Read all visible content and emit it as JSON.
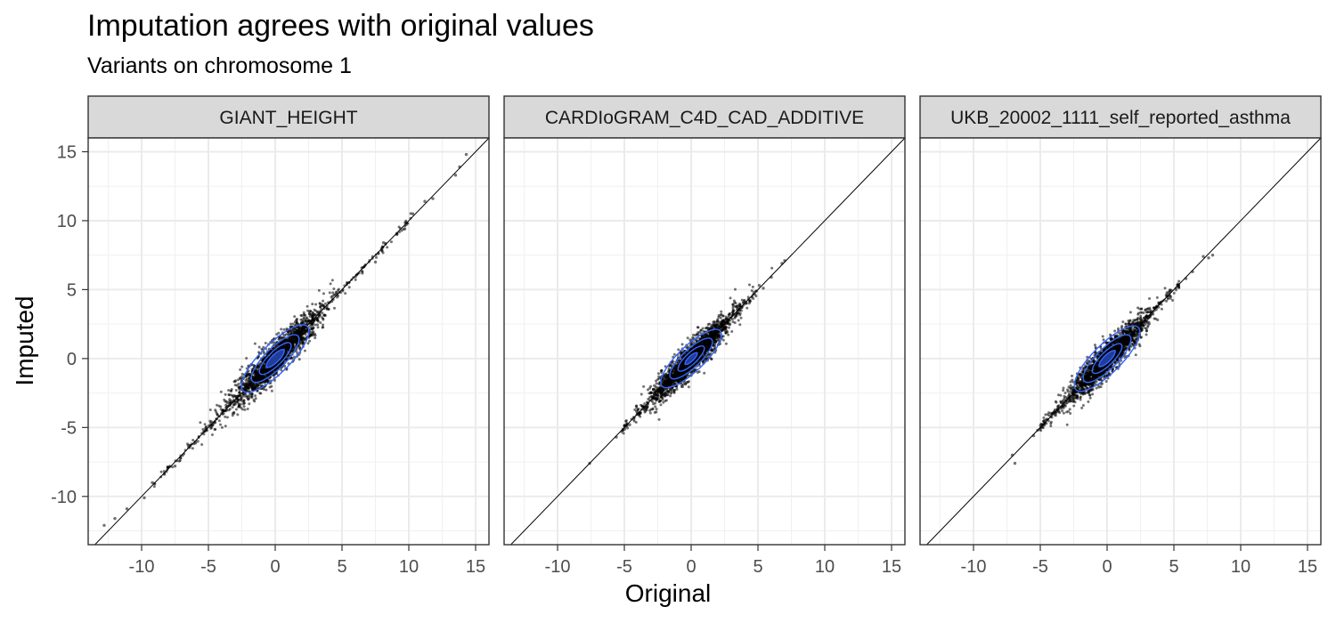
{
  "chart_data": {
    "type": "scatter",
    "title": "Imputation agrees with original values",
    "subtitle": "Variants on chromosome 1",
    "xlabel": "Original",
    "ylabel": "Imputed",
    "xlim": [
      -14,
      16
    ],
    "ylim": [
      -13.5,
      16
    ],
    "x_ticks": [
      -10,
      -5,
      0,
      5,
      10,
      15
    ],
    "y_ticks": [
      -10,
      -5,
      0,
      5,
      10,
      15
    ],
    "tick_labels": [
      "-10",
      "-5",
      "0",
      "5",
      "10",
      "15"
    ],
    "grid": true,
    "reference_line": "y = x",
    "point_color": "#000000",
    "contour_color": "#3366FF",
    "facets": [
      {
        "name": "GIANT_HEIGHT",
        "extent_x": [
          -13,
          14.5
        ],
        "core_sd": 1.3,
        "contour_radii": [
          3.4,
          2.4,
          1.6,
          0.9
        ],
        "contour_slope": 1.0,
        "tail_points": [
          [
            -12.8,
            -12.1
          ],
          [
            -12,
            -11.6
          ],
          [
            -11.1,
            -10.9
          ],
          [
            -9.8,
            -10.1
          ],
          [
            -9.2,
            -9.0
          ],
          [
            -8.3,
            -8.4
          ],
          [
            -7.5,
            -7.8
          ],
          [
            -7.1,
            -7.2
          ],
          [
            -6.4,
            -6.3
          ],
          [
            -5.8,
            -6.0
          ],
          [
            7.5,
            7.0
          ],
          [
            8.1,
            8.4
          ],
          [
            9.1,
            9.0
          ],
          [
            9.7,
            9.4
          ],
          [
            10.3,
            10.5
          ],
          [
            11.2,
            11.4
          ],
          [
            11.8,
            11.6
          ],
          [
            13.5,
            13.3
          ],
          [
            13.8,
            13.9
          ],
          [
            14.3,
            14.8
          ]
        ]
      },
      {
        "name": "CARDIoGRAM_C4D_CAD_ADDITIVE",
        "extent_x": [
          -7.5,
          7
        ],
        "core_sd": 1.15,
        "contour_radii": [
          3.0,
          2.1,
          1.3,
          0.6
        ],
        "contour_slope": 0.95,
        "tail_points": [
          [
            -7.6,
            -7.6
          ],
          [
            -5.6,
            -5.7
          ],
          [
            -5.2,
            -5.3
          ],
          [
            -5.0,
            -4.9
          ],
          [
            -4.6,
            -4.8
          ],
          [
            -4.3,
            -4.4
          ],
          [
            5.1,
            5.3
          ],
          [
            5.4,
            5.1
          ],
          [
            6.0,
            5.9
          ],
          [
            6.8,
            6.9
          ],
          [
            7.0,
            7.1
          ]
        ]
      },
      {
        "name": "UKB_20002_1111_self_reported_asthma",
        "extent_x": [
          -7.2,
          7.8
        ],
        "core_sd": 1.15,
        "contour_radii": [
          3.3,
          2.4,
          1.5,
          0.8
        ],
        "contour_slope": 1.0,
        "tail_points": [
          [
            -7.1,
            -7.0
          ],
          [
            -6.9,
            -7.6
          ],
          [
            -5.5,
            -5.6
          ],
          [
            -5.2,
            -5.2
          ],
          [
            -4.9,
            -4.8
          ],
          [
            5.3,
            5.4
          ],
          [
            5.9,
            5.8
          ],
          [
            6.4,
            6.3
          ],
          [
            7.2,
            7.4
          ],
          [
            7.6,
            7.3
          ],
          [
            7.9,
            7.5
          ]
        ]
      }
    ]
  }
}
